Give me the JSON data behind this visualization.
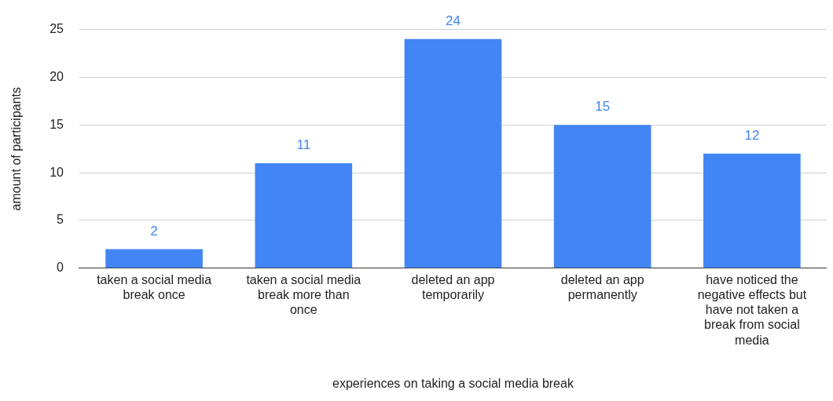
{
  "chart_data": {
    "type": "bar",
    "xlabel": "experiences on taking a social media break",
    "ylabel": "amount of participants",
    "categories": [
      "taken a social media break once",
      "taken a social media break more than once",
      "deleted an app temporarily",
      "deleted an app permanently",
      "have noticed the negative effects but have not taken a break from social media"
    ],
    "values": [
      2,
      11,
      24,
      15,
      12
    ],
    "color": "#4285f4",
    "ylim": [
      0,
      25
    ],
    "yticks": [
      0,
      5,
      10,
      15,
      20,
      25
    ],
    "grid": "y",
    "data_labels": true,
    "legend": false
  }
}
